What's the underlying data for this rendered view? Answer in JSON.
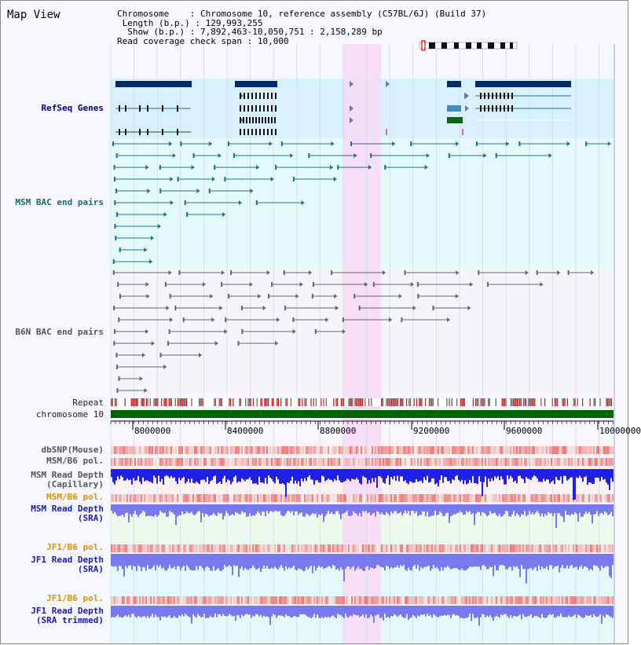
{
  "title": "Map View",
  "info": {
    "chromosome_key": "Chromosome",
    "chromosome_val": "Chromosome 10, reference assembly (C57BL/6J) (Build 37)",
    "length_key": "Length (b.p.)",
    "length_val": "129,993,255",
    "show_key": "Show (b.p.)",
    "show_val": "7,892,463-10,050,751 : 2,158,289 bp",
    "span_key": "Read coverage check span",
    "span_val": "10,000"
  },
  "tracks": {
    "refseq": "RefSeq Genes",
    "msm_bac": "MSM BAC end pairs",
    "b6n_bac": "B6N BAC end pairs",
    "repeat": "Repeat",
    "chromosome": "chromosome 10",
    "dbsnp": "dbSNP(Mouse)",
    "msm_b6_pol": "MSM/B6 pol.",
    "msm_depth_cap_1": "MSM Read Depth",
    "msm_depth_cap_2": "(Capillary)",
    "msm_b6_pol_sra": "MSM/B6 pol.",
    "msm_depth_sra_1": "MSM Read Depth",
    "msm_depth_sra_2": "(SRA)",
    "jf1_b6_pol": "JF1/B6 pol.",
    "jf1_depth_1": "JF1 Read Depth",
    "jf1_depth_2": "(SRA)",
    "jf1_b6_pol_trim": "JF1/B6 pol.",
    "jf1_trim_1": "JF1 Read Depth",
    "jf1_trim_2": "(SRA trimmed)"
  },
  "axis": {
    "ticks": [
      "8000000",
      "8400000",
      "8800000",
      "9200000",
      "9600000",
      "10000000"
    ]
  },
  "colors": {
    "highlight": "#f8d8f4",
    "refseq_bg": "#d8f0fb",
    "msm_bg": "#e4fafa",
    "chromosome_bar": "#006400",
    "gene_dark": "#002a6a",
    "msm_pair": "#1f6f8b",
    "b6n_pair": "#666666",
    "depth_blue": "#1f1fe8",
    "depth_lavender": "#7a78ee"
  }
}
